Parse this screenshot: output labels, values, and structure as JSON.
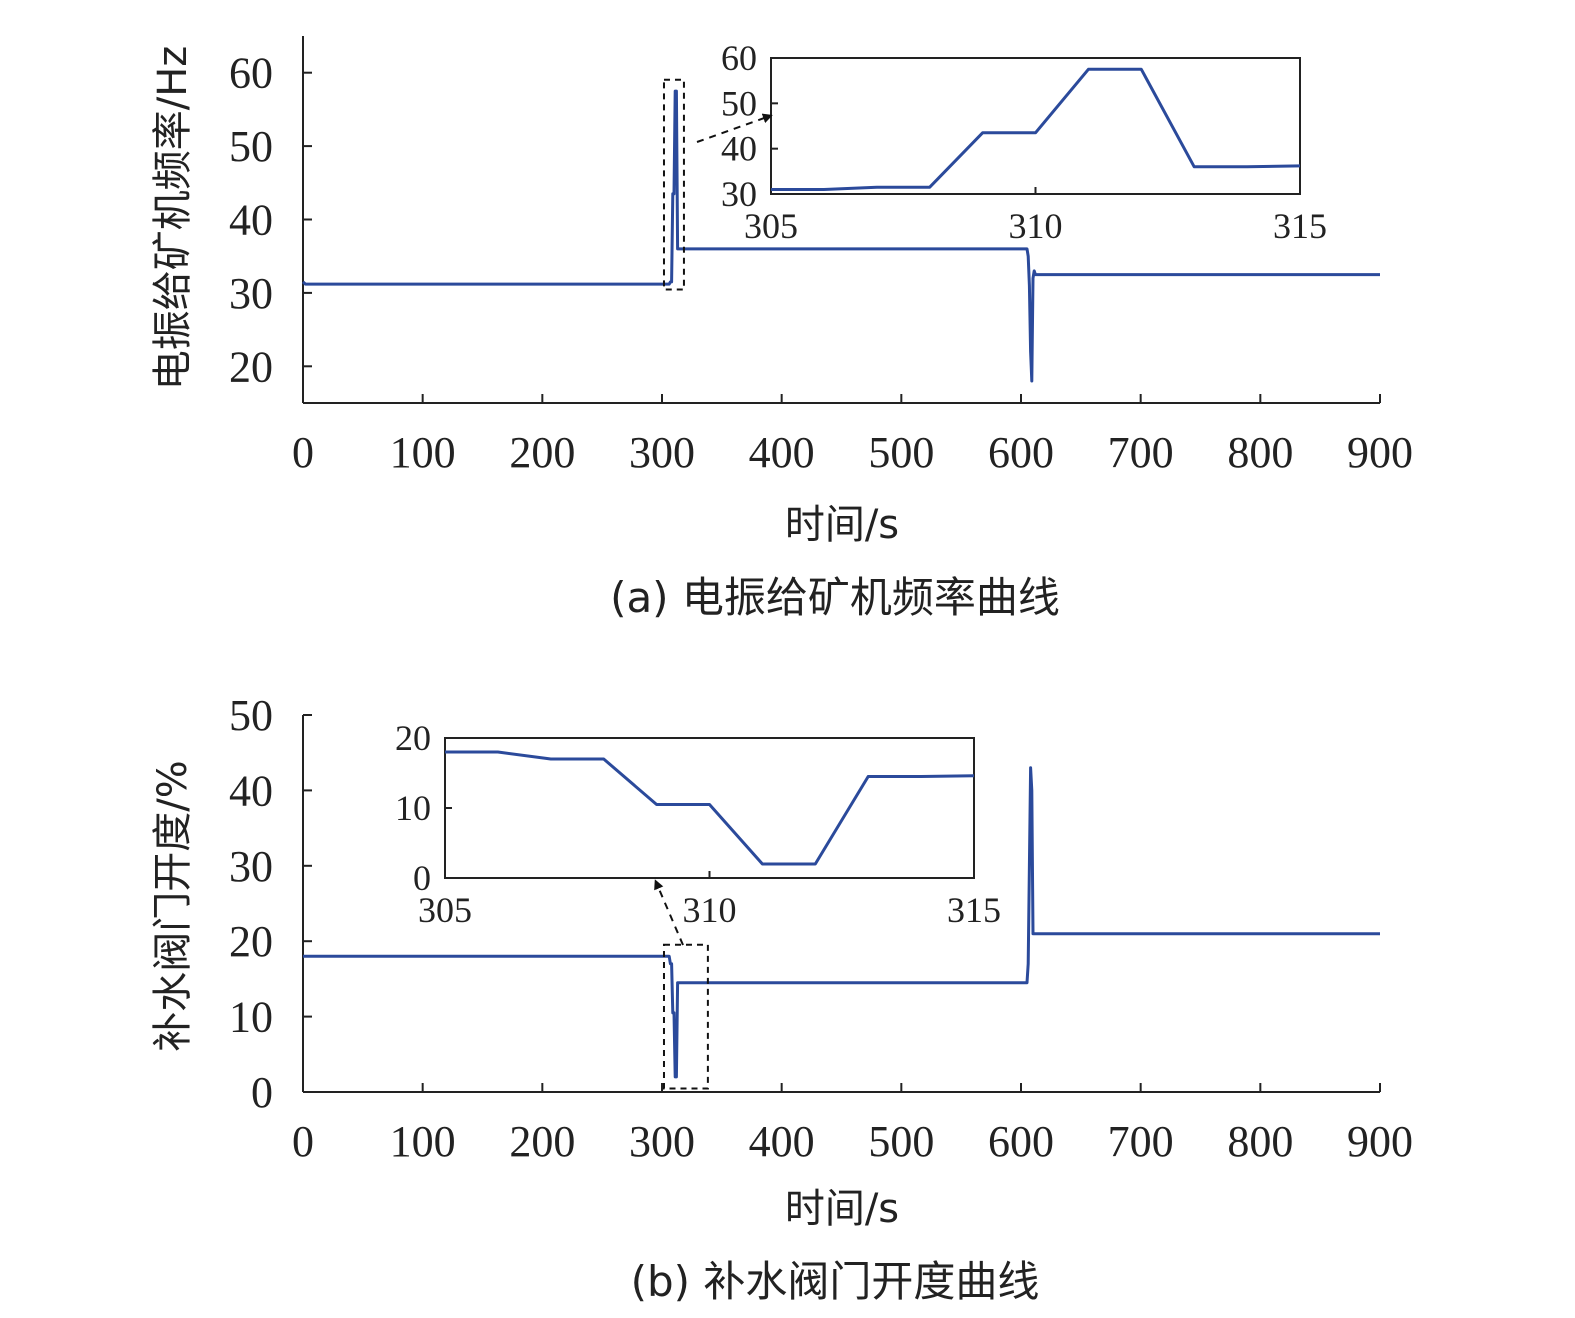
{
  "chart_data": [
    {
      "type": "line",
      "caption": "(a) 电振给矿机频率曲线",
      "xlabel": "时间/s",
      "ylabel": "电振给矿机频率/Hz",
      "xlim": [
        0,
        900
      ],
      "ylim": [
        15,
        65
      ],
      "xticks": [
        0,
        100,
        200,
        300,
        400,
        500,
        600,
        700,
        800,
        900
      ],
      "yticks": [
        20,
        30,
        40,
        50,
        60
      ],
      "color": "#2b4a9b",
      "series": [
        {
          "x": [
            0,
            2,
            305,
            306,
            307,
            308,
            309,
            310,
            311,
            312,
            313,
            315,
            600,
            605,
            606,
            607,
            608,
            609,
            610,
            611,
            612,
            900
          ],
          "y": [
            31.5,
            31.2,
            31.2,
            31.2,
            31.5,
            31.5,
            43.5,
            43.5,
            57.5,
            57.5,
            36,
            36,
            36,
            36,
            35,
            31,
            22,
            18,
            32,
            33,
            32.5,
            32.5
          ]
        }
      ],
      "highlight_box": {
        "x": [
          305,
          315
        ],
        "y": [
          31,
          58.5
        ]
      },
      "inset": {
        "xlim": [
          305,
          315
        ],
        "ylim": [
          30,
          60
        ],
        "xticks": [
          305,
          310,
          315
        ],
        "yticks": [
          30,
          40,
          50,
          60
        ],
        "series": [
          {
            "x": [
              305,
              306,
              307,
              308,
              309,
              310,
              311,
              312,
              313,
              314,
              315
            ],
            "y": [
              31,
              31,
              31.5,
              31.5,
              43.5,
              43.5,
              57.5,
              57.5,
              36,
              36,
              36.2
            ]
          }
        ]
      }
    },
    {
      "type": "line",
      "caption": "(b) 补水阀门开度曲线",
      "xlabel": "时间/s",
      "ylabel": "补水阀门开度/%",
      "xlim": [
        0,
        900
      ],
      "ylim": [
        0,
        50
      ],
      "xticks": [
        0,
        100,
        200,
        300,
        400,
        500,
        600,
        700,
        800,
        900
      ],
      "yticks": [
        0,
        10,
        20,
        30,
        40,
        50
      ],
      "color": "#2b4a9b",
      "series": [
        {
          "x": [
            0,
            305,
            306,
            307,
            308,
            309,
            310,
            311,
            312,
            313,
            315,
            605,
            606,
            607,
            608,
            609,
            610,
            611,
            612,
            900
          ],
          "y": [
            18,
            18,
            18,
            17,
            17,
            10.5,
            10.5,
            2,
            2,
            14.5,
            14.5,
            14.5,
            17,
            30,
            43,
            40,
            21,
            21,
            21,
            21
          ]
        }
      ],
      "highlight_box": {
        "x": [
          305,
          335
        ],
        "y": [
          1,
          19
        ]
      },
      "inset": {
        "xlim": [
          305,
          315
        ],
        "ylim": [
          0,
          20
        ],
        "xticks": [
          305,
          310,
          315
        ],
        "yticks": [
          0,
          10,
          20
        ],
        "series": [
          {
            "x": [
              305,
              306,
              307,
              308,
              309,
              310,
              311,
              312,
              313,
              314,
              315
            ],
            "y": [
              18,
              18,
              17,
              17,
              10.5,
              10.5,
              2,
              2,
              14.5,
              14.5,
              14.6
            ]
          }
        ]
      }
    }
  ]
}
